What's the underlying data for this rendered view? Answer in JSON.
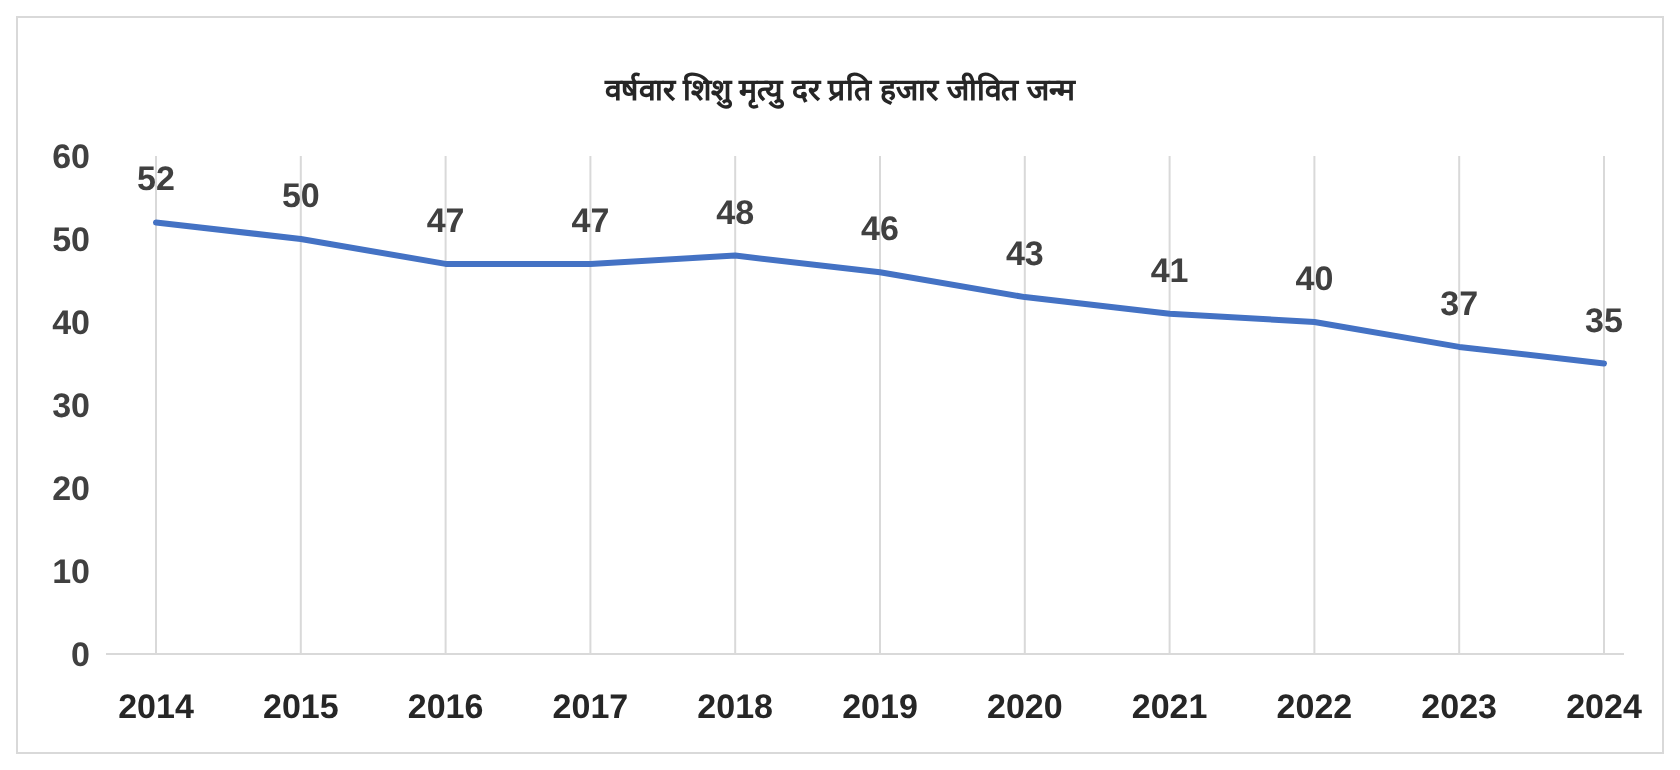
{
  "chart_data": {
    "type": "line",
    "title": "वर्षवार शिशु मृत्यु दर प्रति हजार जीवित जन्म",
    "categories": [
      "2014",
      "2015",
      "2016",
      "2017",
      "2018",
      "2019",
      "2020",
      "2021",
      "2022",
      "2023",
      "2024"
    ],
    "series": [
      {
        "color": "#4472c4",
        "values": [
          52,
          50,
          47,
          47,
          48,
          46,
          43,
          41,
          40,
          37,
          35
        ]
      }
    ],
    "ylim": [
      0,
      60
    ],
    "yticks": [
      0,
      10,
      20,
      30,
      40,
      50,
      60
    ],
    "grid": "x",
    "data_labels": true,
    "marker": "none",
    "line_style": "solid"
  }
}
